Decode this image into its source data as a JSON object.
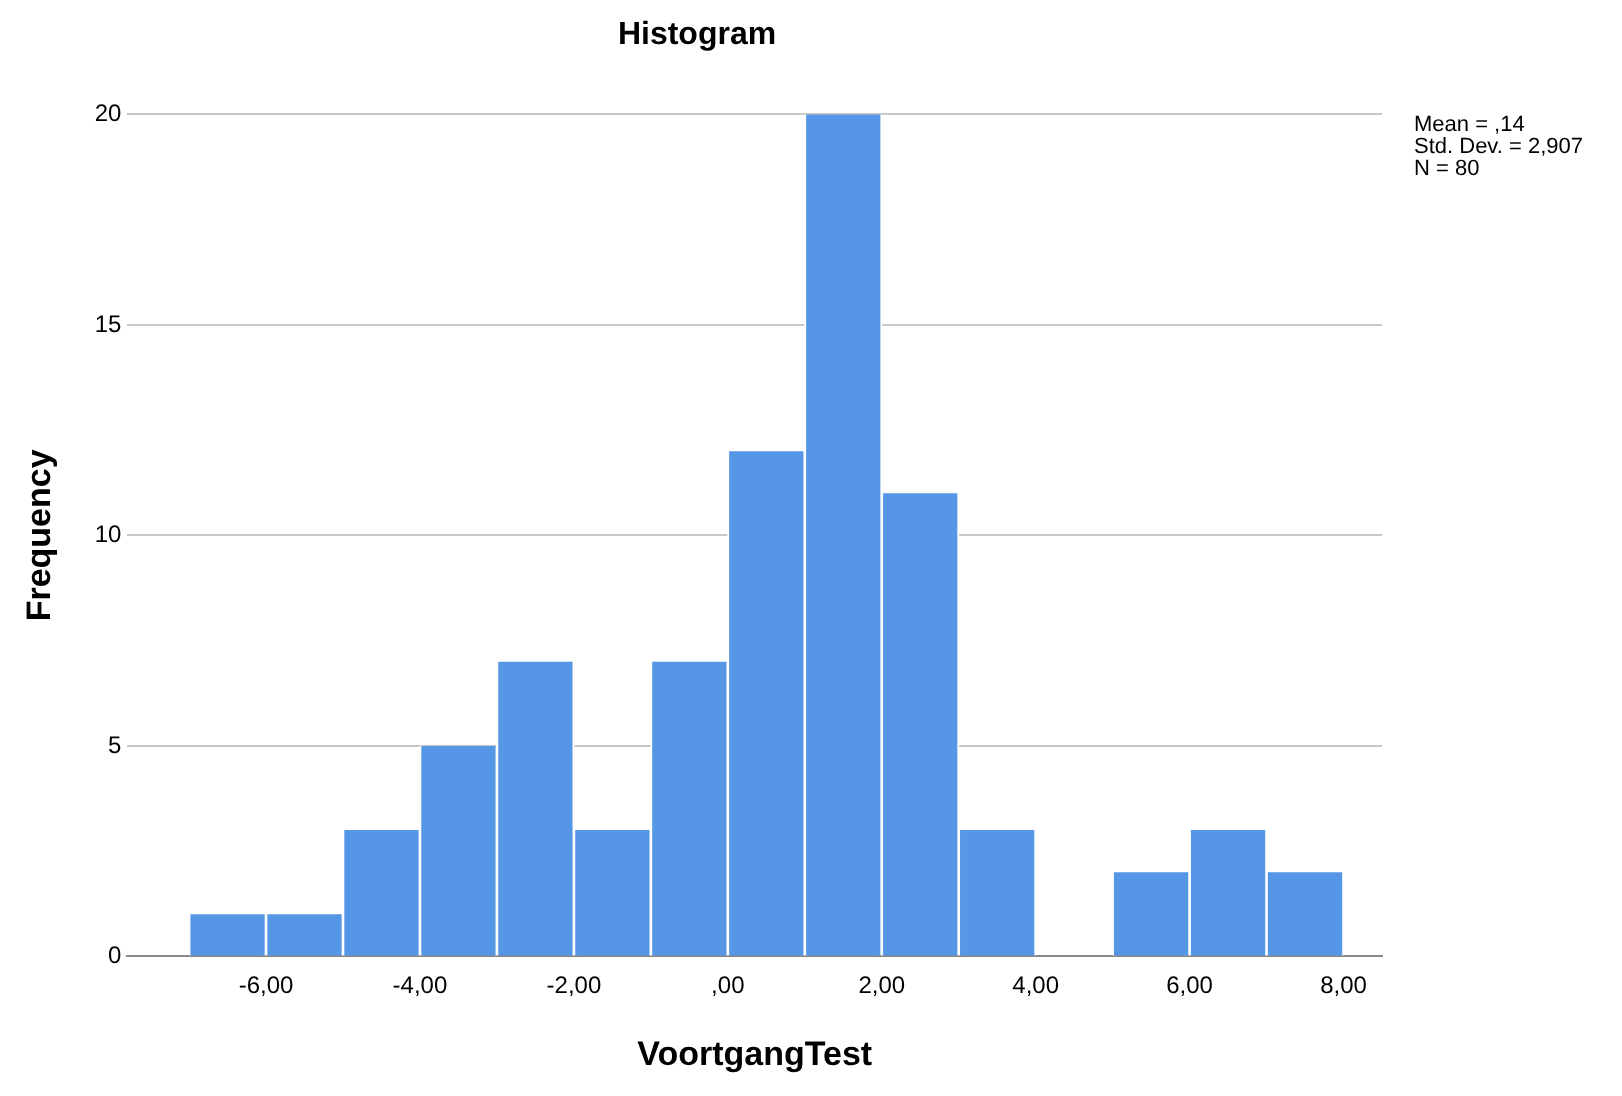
{
  "chart_data": {
    "type": "histogram",
    "title": "Histogram",
    "xlabel": "VoortgangTest",
    "ylabel": "Frequency",
    "bins": [
      -7,
      -6,
      -5,
      -4,
      -3,
      -2,
      -1,
      0,
      1,
      2,
      3,
      4,
      5,
      6,
      7,
      8
    ],
    "values": [
      1,
      1,
      3,
      5,
      7,
      3,
      7,
      12,
      20,
      11,
      3,
      0,
      2,
      3,
      2
    ],
    "color": "#5596e6",
    "xlim": [
      -7.8,
      8.5
    ],
    "xticks": [
      {
        "value": -6,
        "label": "-6,00"
      },
      {
        "value": -4,
        "label": "-4,00"
      },
      {
        "value": -2,
        "label": "-2,00"
      },
      {
        "value": 0,
        "label": ",00"
      },
      {
        "value": 2,
        "label": "2,00"
      },
      {
        "value": 4,
        "label": "4,00"
      },
      {
        "value": 6,
        "label": "6,00"
      },
      {
        "value": 8,
        "label": "8,00"
      }
    ],
    "ylim": [
      0,
      20
    ],
    "yticks": [
      0,
      5,
      10,
      15,
      20
    ],
    "grid": "y",
    "legend": false,
    "annotations": [
      "Mean = ,14",
      "Std. Dev. = 2,907",
      "N = 80"
    ]
  }
}
